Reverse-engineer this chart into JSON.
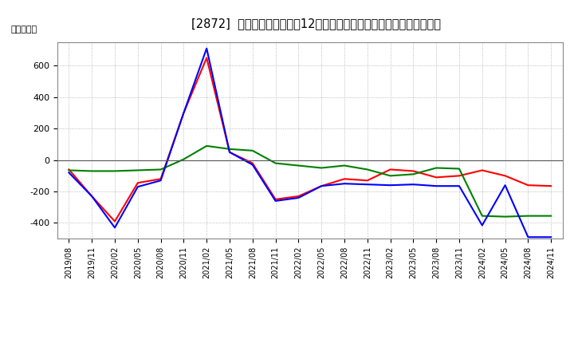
{
  "title": "[2872]  キャッシュフローの12か月移動合計の対前年同期増減額の推移",
  "ylabel": "（百万円）",
  "background_color": "#ffffff",
  "plot_bg_color": "#ffffff",
  "grid_color": "#aaaaaa",
  "x_labels": [
    "2019/08",
    "2019/11",
    "2020/02",
    "2020/05",
    "2020/08",
    "2020/11",
    "2021/02",
    "2021/05",
    "2021/08",
    "2021/11",
    "2022/02",
    "2022/05",
    "2022/08",
    "2022/11",
    "2023/02",
    "2023/05",
    "2023/08",
    "2023/11",
    "2024/02",
    "2024/05",
    "2024/08",
    "2024/11"
  ],
  "eigyo_cf": [
    -60,
    -230,
    -390,
    -145,
    -120,
    300,
    650,
    50,
    -20,
    -250,
    -230,
    -165,
    -120,
    -130,
    -60,
    -70,
    -110,
    -100,
    -65,
    -100,
    -160,
    -165
  ],
  "toshi_cf": [
    -65,
    -70,
    -70,
    -65,
    -60,
    5,
    90,
    70,
    60,
    -20,
    -35,
    -50,
    -35,
    -60,
    -100,
    -90,
    -50,
    -55,
    -355,
    -360,
    -355,
    -355
  ],
  "free_cf": [
    -80,
    -230,
    -430,
    -170,
    -130,
    300,
    710,
    50,
    -30,
    -260,
    -240,
    -165,
    -150,
    -155,
    -160,
    -155,
    -165,
    -165,
    -415,
    -160,
    -490,
    -490
  ],
  "eigyo_color": "#ff0000",
  "toshi_color": "#008000",
  "free_color": "#0000ff",
  "ylim": [
    -500,
    750
  ],
  "yticks": [
    -400,
    -200,
    0,
    200,
    400,
    600
  ]
}
